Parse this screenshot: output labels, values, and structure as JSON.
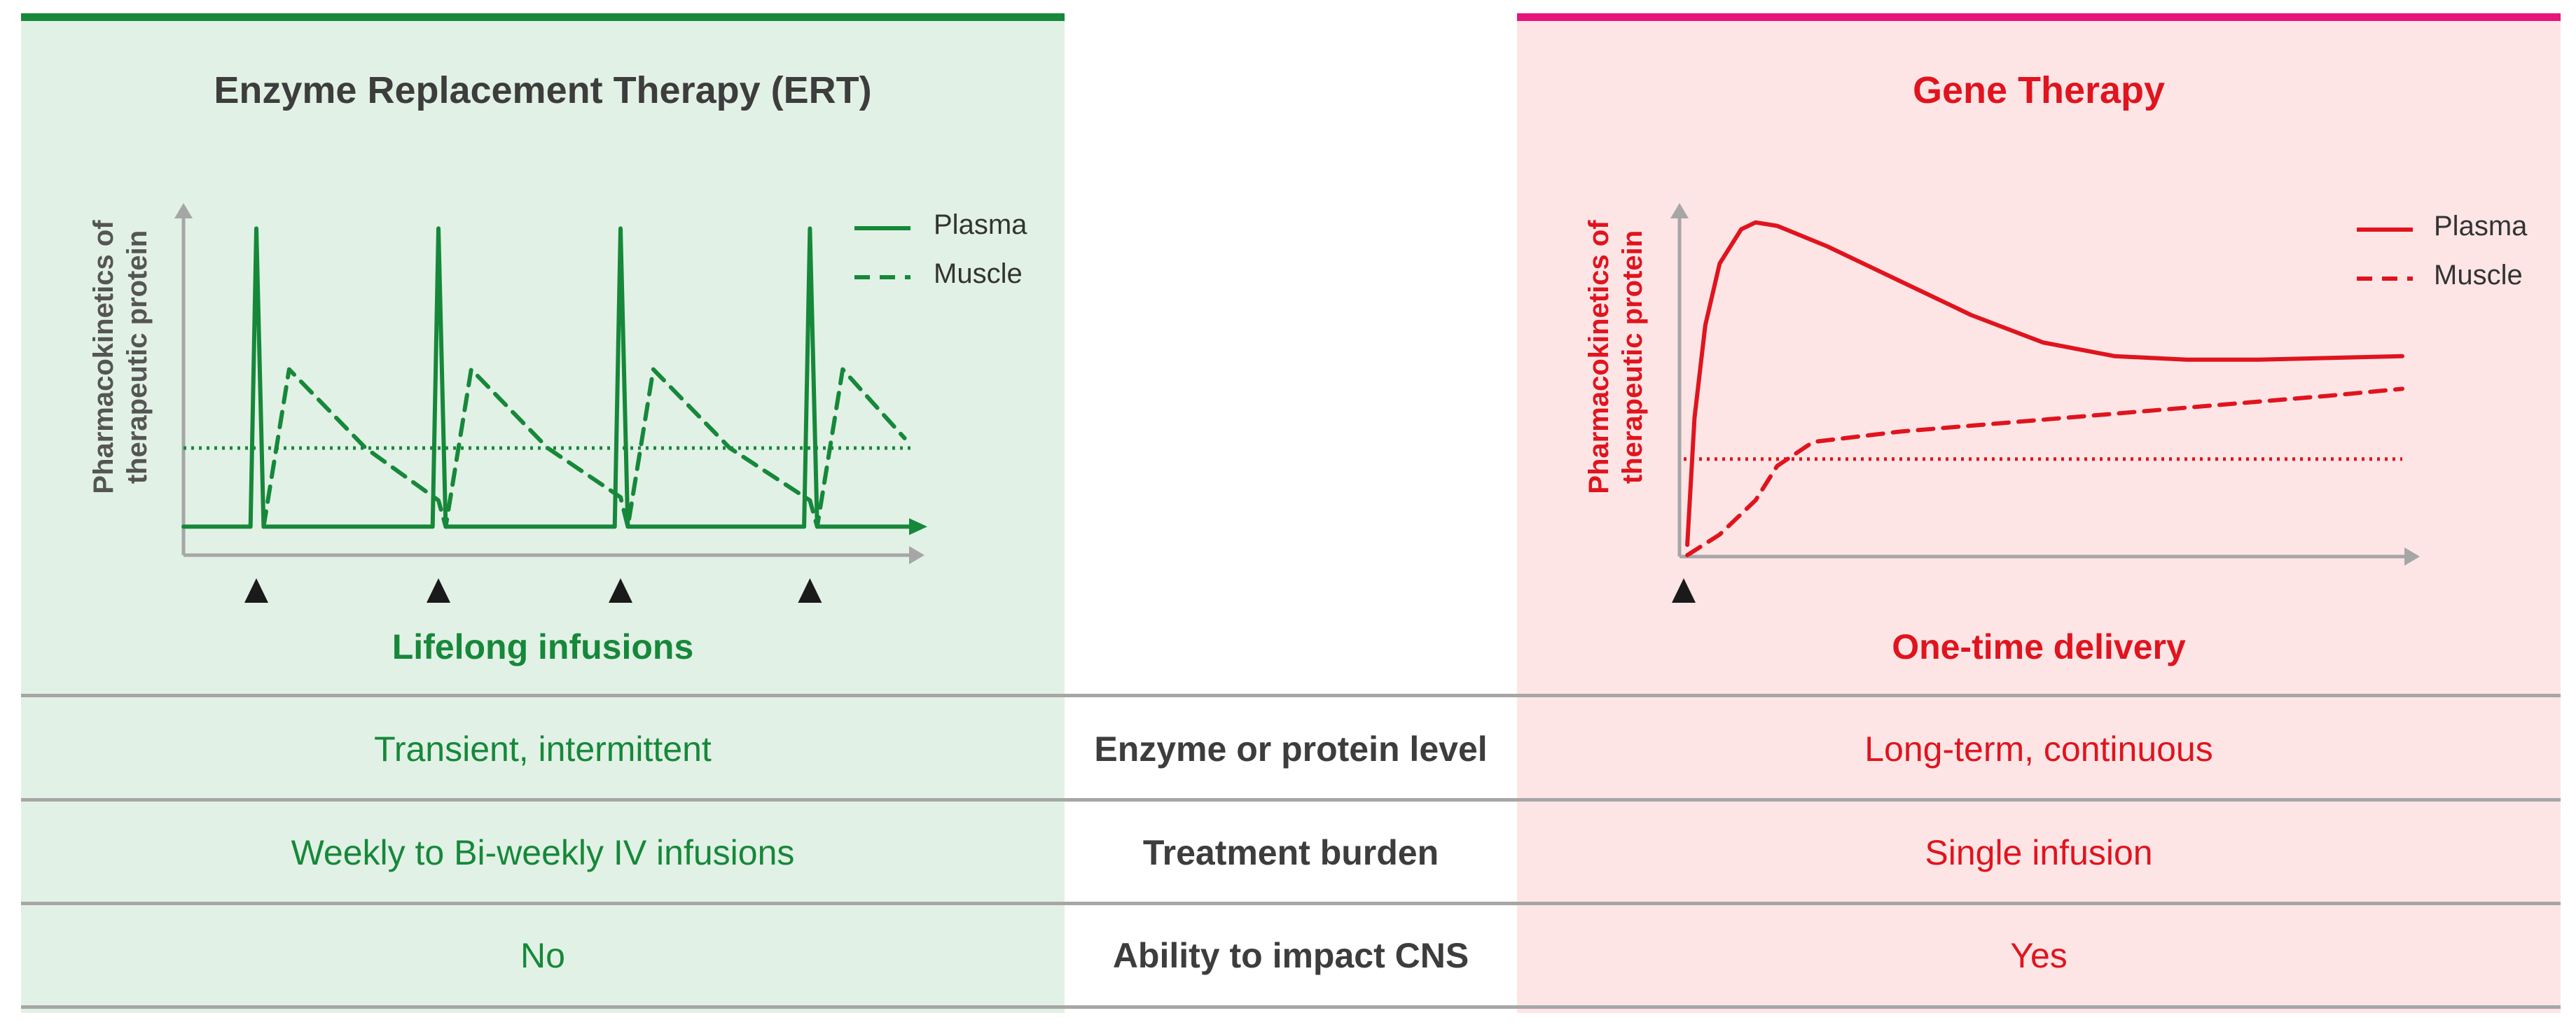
{
  "colors": {
    "ert_accent": "#16883a",
    "ert_background": "#e2f1e5",
    "gt_accent": "#e0141e",
    "gt_background": "#fde5e6",
    "gt_topbar": "#e5157b",
    "divider": "#a6a6a6"
  },
  "ert": {
    "title": "Enzyme Replacement Therapy (ERT)",
    "subtitle": "Lifelong infusions",
    "ylabel_line1": "Pharmacokinetics of",
    "ylabel_line2": "therapeutic protein",
    "legend": [
      "Plasma",
      "Muscle"
    ]
  },
  "gene_therapy": {
    "title": "Gene Therapy",
    "subtitle": "One-time delivery",
    "ylabel_line1": "Pharmacokinetics of",
    "ylabel_line2": "therapeutic protein",
    "legend": [
      "Plasma",
      "Muscle"
    ]
  },
  "comparison": {
    "rows": [
      {
        "label": "Enzyme or protein level",
        "ert": "Transient, intermittent",
        "gene_therapy": "Long-term, continuous"
      },
      {
        "label": "Treatment burden",
        "ert": "Weekly to Bi-weekly IV infusions",
        "gene_therapy": "Single infusion"
      },
      {
        "label": "Ability to impact CNS",
        "ert": "No",
        "gene_therapy": "Yes"
      }
    ]
  },
  "chart_data": [
    {
      "type": "line",
      "title": "Enzyme Replacement Therapy (ERT)",
      "xlabel": "",
      "ylabel": "Pharmacokinetics of therapeutic protein",
      "x_range": [
        0,
        10
      ],
      "ylim": [
        0,
        10
      ],
      "threshold": 2.8,
      "infusion_markers_x": [
        1,
        3.5,
        6,
        8.6
      ],
      "series": [
        {
          "name": "Plasma",
          "style": "solid",
          "points": [
            [
              0,
              0.4
            ],
            [
              0.92,
              0.4
            ],
            [
              1.0,
              9.5
            ],
            [
              1.1,
              0.4
            ],
            [
              3.42,
              0.4
            ],
            [
              3.5,
              9.5
            ],
            [
              3.6,
              0.4
            ],
            [
              5.92,
              0.4
            ],
            [
              6.0,
              9.5
            ],
            [
              6.1,
              0.4
            ],
            [
              8.52,
              0.4
            ],
            [
              8.6,
              9.5
            ],
            [
              8.7,
              0.4
            ],
            [
              10,
              0.4
            ]
          ]
        },
        {
          "name": "Muscle",
          "style": "dashed",
          "points": [
            [
              1.1,
              0.4
            ],
            [
              1.45,
              5.2
            ],
            [
              2.5,
              2.8
            ],
            [
              3.5,
              1.2
            ],
            [
              3.6,
              0.4
            ],
            [
              3.95,
              5.2
            ],
            [
              5.0,
              2.8
            ],
            [
              6.0,
              1.3
            ],
            [
              6.1,
              0.4
            ],
            [
              6.45,
              5.2
            ],
            [
              7.5,
              2.8
            ],
            [
              8.6,
              1.2
            ],
            [
              8.7,
              0.4
            ],
            [
              9.05,
              5.2
            ],
            [
              9.9,
              3.1
            ]
          ]
        }
      ],
      "legend": [
        "Plasma",
        "Muscle"
      ],
      "legend_position": "top-right"
    },
    {
      "type": "line",
      "title": "Gene Therapy",
      "xlabel": "",
      "ylabel": "Pharmacokinetics of therapeutic protein",
      "x_range": [
        0,
        10
      ],
      "ylim": [
        0,
        10
      ],
      "threshold": 2.8,
      "infusion_markers_x": [
        0
      ],
      "series": [
        {
          "name": "Plasma",
          "style": "solid",
          "points": [
            [
              0.05,
              0.3
            ],
            [
              0.15,
              4.0
            ],
            [
              0.3,
              6.7
            ],
            [
              0.5,
              8.5
            ],
            [
              0.8,
              9.5
            ],
            [
              1.0,
              9.7
            ],
            [
              1.3,
              9.6
            ],
            [
              2,
              9.0
            ],
            [
              3,
              8.0
            ],
            [
              4,
              7.0
            ],
            [
              5,
              6.2
            ],
            [
              6,
              5.8
            ],
            [
              7,
              5.7
            ],
            [
              8,
              5.7
            ],
            [
              10,
              5.8
            ]
          ]
        },
        {
          "name": "Muscle",
          "style": "dashed",
          "points": [
            [
              0.05,
              0.0
            ],
            [
              0.5,
              0.6
            ],
            [
              1.0,
              1.6
            ],
            [
              1.3,
              2.6
            ],
            [
              1.8,
              3.3
            ],
            [
              3,
              3.6
            ],
            [
              5,
              3.95
            ],
            [
              7,
              4.3
            ],
            [
              9,
              4.65
            ],
            [
              10,
              4.85
            ]
          ]
        }
      ],
      "legend": [
        "Plasma",
        "Muscle"
      ],
      "legend_position": "top-right"
    }
  ]
}
